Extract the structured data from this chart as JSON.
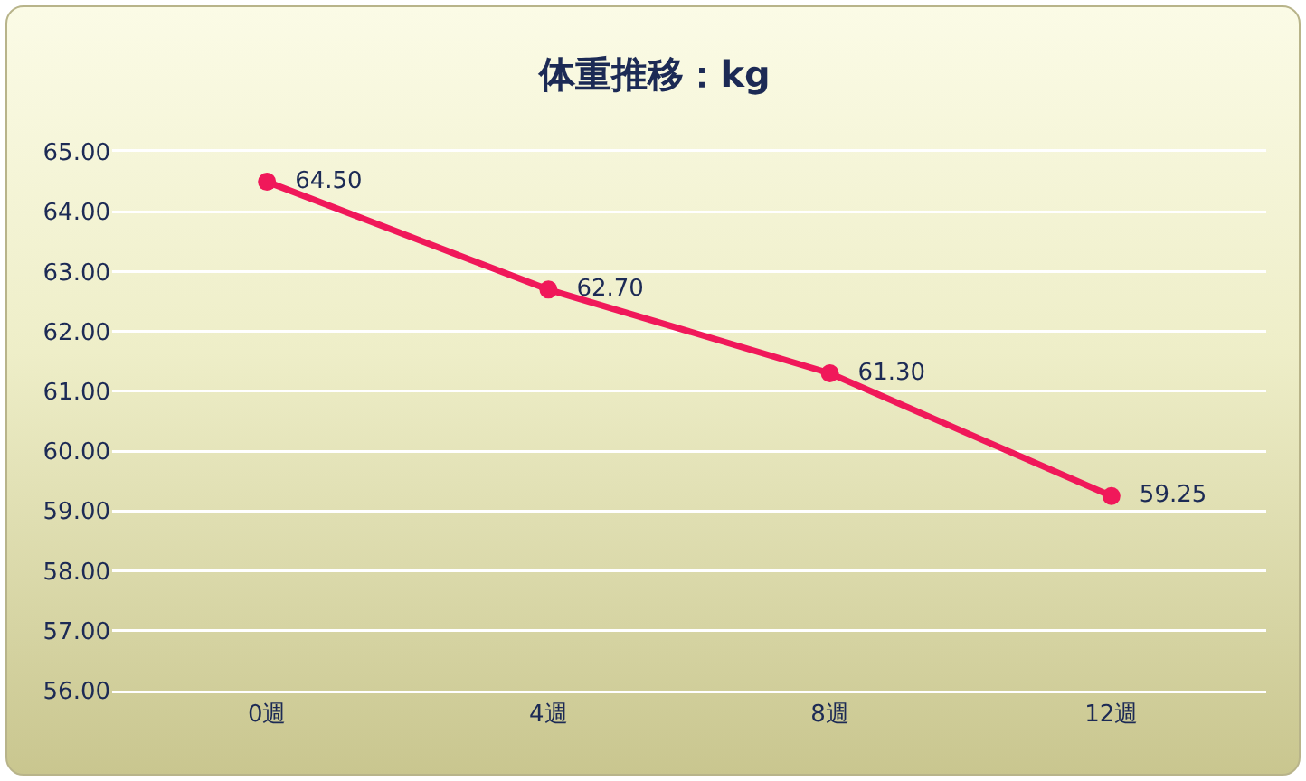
{
  "chart_data": {
    "type": "line",
    "title": "体重推移：kg",
    "categories": [
      "0週",
      "4週",
      "8週",
      "12週"
    ],
    "series": [
      {
        "color": "#f0185a",
        "values": [
          64.5,
          62.7,
          61.3,
          59.25
        ],
        "value_labels": [
          "64.50",
          "62.70",
          "61.30",
          "59.25"
        ]
      }
    ],
    "ylim": [
      56,
      65
    ],
    "yticks": [
      {
        "value": 56,
        "label": "56.00"
      },
      {
        "value": 57,
        "label": "57.00"
      },
      {
        "value": 58,
        "label": "58.00"
      },
      {
        "value": 59,
        "label": "59.00"
      },
      {
        "value": 60,
        "label": "60.00"
      },
      {
        "value": 61,
        "label": "61.00"
      },
      {
        "value": 62,
        "label": "62.00"
      },
      {
        "value": 63,
        "label": "63.00"
      },
      {
        "value": 64,
        "label": "64.00"
      },
      {
        "value": 65,
        "label": "65.00"
      }
    ],
    "grid": "y",
    "marker": "circle",
    "line_style": "solid"
  }
}
